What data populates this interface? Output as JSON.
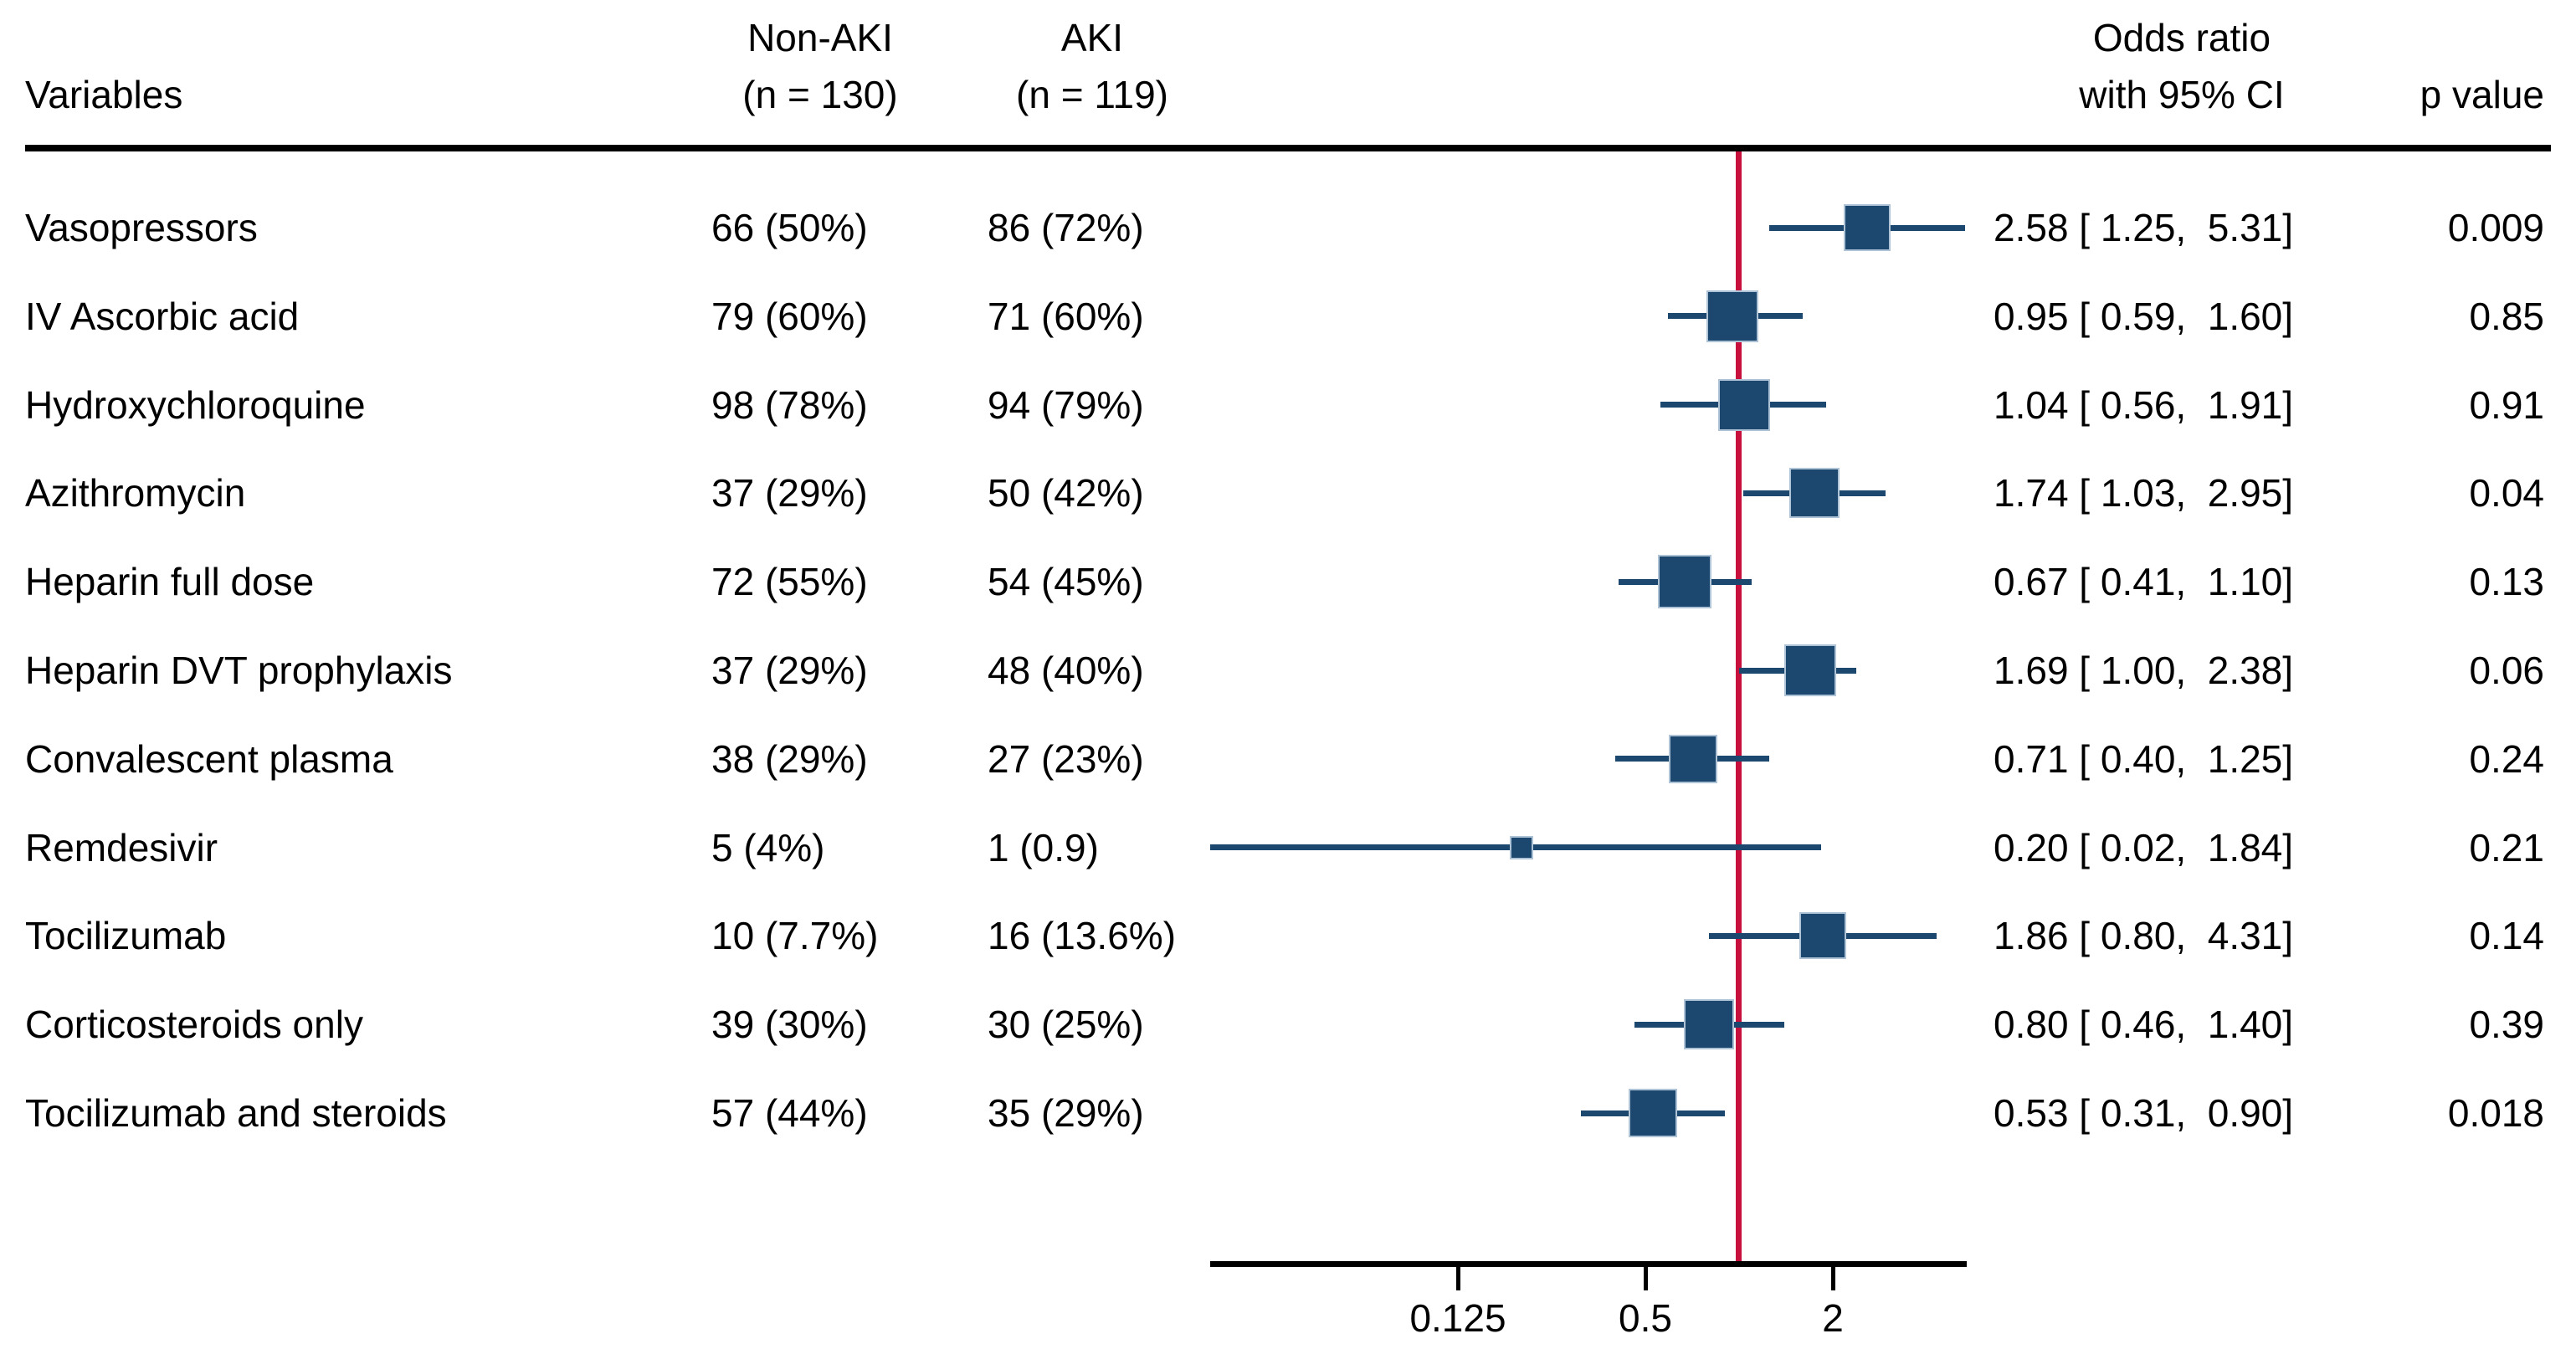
{
  "headers": {
    "variables": "Variables",
    "group1_line1": "Non-AKI",
    "group1_line2": "(n = 130)",
    "group2_line1": "AKI",
    "group2_line2": "(n = 119)",
    "or_line1": "Odds ratio",
    "or_line2": "with 95% CI",
    "p": "p value"
  },
  "chart_data": {
    "type": "forest",
    "x_scale": "log",
    "axis": {
      "ticks": [
        0.125,
        0.5,
        2
      ],
      "tick_labels": [
        "0.125",
        "0.5",
        "2"
      ],
      "reference_line": 1,
      "range": [
        0.02,
        5.31
      ]
    },
    "colors": {
      "marker": "#1c476e",
      "marker_border": "#aec3d6",
      "ci_line": "#1c476e",
      "reference_line": "#c8103c",
      "text": "#000000",
      "rule": "#000000"
    },
    "rows": [
      {
        "variable": "Vasopressors",
        "non_aki": "66 (50%)",
        "aki": "86 (72%)",
        "or": 2.58,
        "ci_low": 1.25,
        "ci_high": 5.31,
        "or_label": "2.58 [ 1.25,  5.31]",
        "p": "0.009",
        "marker_size": 56
      },
      {
        "variable": "IV Ascorbic acid",
        "non_aki": "79 (60%)",
        "aki": "71 (60%)",
        "or": 0.95,
        "ci_low": 0.59,
        "ci_high": 1.6,
        "or_label": "0.95 [ 0.59,  1.60]",
        "p": "0.85",
        "marker_size": 62
      },
      {
        "variable": "Hydroxychloroquine",
        "non_aki": "98 (78%)",
        "aki": "94 (79%)",
        "or": 1.04,
        "ci_low": 0.56,
        "ci_high": 1.91,
        "or_label": "1.04 [ 0.56,  1.91]",
        "p": "0.91",
        "marker_size": 62
      },
      {
        "variable": "Azithromycin",
        "non_aki": "37 (29%)",
        "aki": "50 (42%)",
        "or": 1.74,
        "ci_low": 1.03,
        "ci_high": 2.95,
        "or_label": "1.74 [ 1.03,  2.95]",
        "p": "0.04",
        "marker_size": 60
      },
      {
        "variable": "Heparin full dose",
        "non_aki": "72 (55%)",
        "aki": "54 (45%)",
        "or": 0.67,
        "ci_low": 0.41,
        "ci_high": 1.1,
        "or_label": "0.67 [ 0.41,  1.10]",
        "p": "0.13",
        "marker_size": 64
      },
      {
        "variable": "Heparin DVT prophylaxis",
        "non_aki": "37 (29%)",
        "aki": "48 (40%)",
        "or": 1.69,
        "ci_low": 1.0,
        "ci_high": 2.38,
        "or_label": "1.69 [ 1.00,  2.38]",
        "p": "0.06",
        "marker_size": 62
      },
      {
        "variable": "Convalescent plasma",
        "non_aki": "38 (29%)",
        "aki": "27 (23%)",
        "or": 0.71,
        "ci_low": 0.4,
        "ci_high": 1.25,
        "or_label": "0.71 [ 0.40,  1.25]",
        "p": "0.24",
        "marker_size": 58
      },
      {
        "variable": "Remdesivir",
        "non_aki": "5 (4%)",
        "aki": "1 (0.9)",
        "or": 0.2,
        "ci_low": 0.02,
        "ci_high": 1.84,
        "or_label": "0.20 [ 0.02,  1.84]",
        "p": "0.21",
        "marker_size": 28
      },
      {
        "variable": "Tocilizumab",
        "non_aki": "10 (7.7%)",
        "aki": "16 (13.6%)",
        "or": 1.86,
        "ci_low": 0.8,
        "ci_high": 4.31,
        "or_label": "1.86 [ 0.80,  4.31]",
        "p": "0.14",
        "marker_size": 56
      },
      {
        "variable": "Corticosteroids only",
        "non_aki": "39 (30%)",
        "aki": "30 (25%)",
        "or": 0.8,
        "ci_low": 0.46,
        "ci_high": 1.4,
        "or_label": "0.80 [ 0.46,  1.40]",
        "p": "0.39",
        "marker_size": 60
      },
      {
        "variable": "Tocilizumab and steroids",
        "non_aki": "57 (44%)",
        "aki": "35 (29%)",
        "or": 0.53,
        "ci_low": 0.31,
        "ci_high": 0.9,
        "or_label": "0.53 [ 0.31,  0.90]",
        "p": "0.018",
        "marker_size": 58
      }
    ]
  }
}
